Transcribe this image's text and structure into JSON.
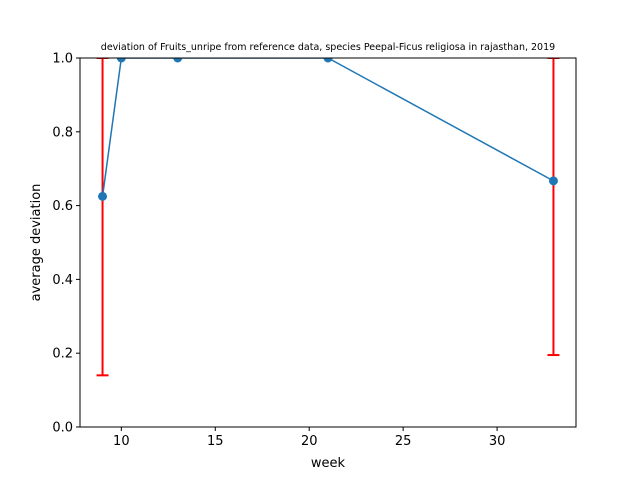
{
  "chart_data": {
    "type": "line",
    "title": "deviation of Fruits_unripe from reference data, species Peepal-Ficus religiosa in rajasthan, 2019",
    "xlabel": "week",
    "ylabel": "average deviation",
    "xlim": [
      7.8,
      34.2
    ],
    "ylim": [
      0.0,
      1.0
    ],
    "xticks": [
      10,
      15,
      20,
      25,
      30
    ],
    "yticks": [
      0.0,
      0.2,
      0.4,
      0.6,
      0.8,
      1.0
    ],
    "xtick_labels": [
      "10",
      "15",
      "20",
      "25",
      "30"
    ],
    "ytick_labels": [
      "0.0",
      "0.2",
      "0.4",
      "0.6",
      "0.8",
      "1.0"
    ],
    "grid": false,
    "colors": {
      "line": "#1f77b4",
      "error": "#ff0000"
    },
    "series": [
      {
        "x": [
          9,
          10,
          13,
          21,
          33
        ],
        "y": [
          0.625,
          1.0,
          1.0,
          1.0,
          0.667
        ],
        "error_lower": [
          0.14,
          null,
          null,
          null,
          0.195
        ],
        "error_upper": [
          1.0,
          null,
          null,
          null,
          1.0
        ]
      }
    ]
  }
}
